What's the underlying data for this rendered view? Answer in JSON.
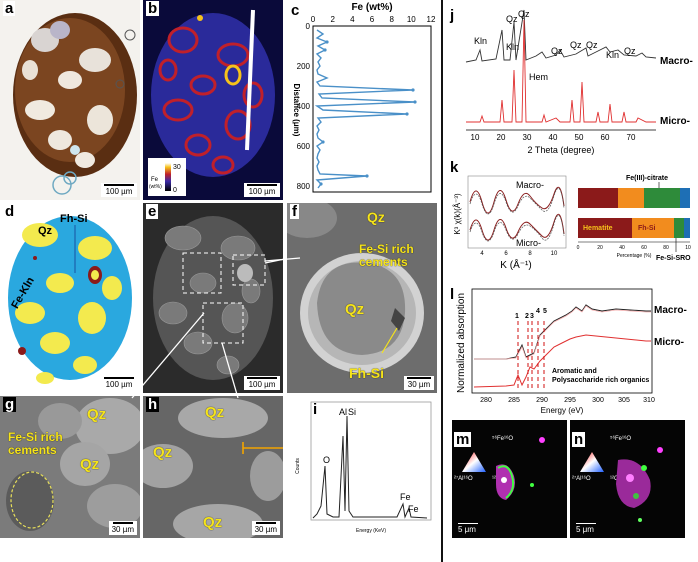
{
  "panels": {
    "a": {
      "label": "a",
      "scale": "100 µm"
    },
    "b": {
      "label": "b",
      "scale": "100 µm",
      "legend_title": "Fe",
      "legend_unit": "(wt%)",
      "legend_max": "30",
      "legend_min": "0"
    },
    "c": {
      "label": "c",
      "top_axis_label": "Fe (wt%)",
      "y_axis_label": "Distance (μm)",
      "x_ticks": [
        "0",
        "2",
        "4",
        "6",
        "8",
        "10",
        "12"
      ],
      "y_ticks": [
        "0",
        "200",
        "400",
        "600",
        "800"
      ]
    },
    "d": {
      "label": "d",
      "scale": "100 µm",
      "labels": {
        "qz": "Qz",
        "fhsi": "Fh-Si",
        "fekln": "Fe-Kln"
      }
    },
    "e": {
      "label": "e",
      "scale": "100 µm"
    },
    "f": {
      "label": "f",
      "scale": "30 µm",
      "labels": {
        "qz_top": "Qz",
        "cements": "Fe-Si rich\ncements",
        "qz_center": "Qz",
        "fhsi": "Fh-Si"
      }
    },
    "g": {
      "label": "g",
      "scale": "30 µm",
      "labels": {
        "qz1": "Qz",
        "qz2": "Qz",
        "cements": "Fe-Si rich\ncements"
      }
    },
    "h": {
      "label": "h",
      "scale": "30 µm",
      "labels": {
        "qz1": "Qz",
        "qz2": "Qz",
        "qz3": "Qz"
      }
    },
    "i": {
      "label": "i",
      "y_axis_label": "Counts",
      "x_axis_label": "Energy (KeV)",
      "peaks": {
        "o": "O",
        "al": "Al",
        "si": "Si",
        "fe1": "Fe",
        "fe2": "Fe"
      }
    },
    "j": {
      "label": "j",
      "x_axis_label": "2 Theta (degree)",
      "x_ticks": [
        "10",
        "20",
        "30",
        "40",
        "50",
        "60",
        "70"
      ],
      "series": [
        "Macro-",
        "Micro-"
      ],
      "peak_labels": [
        "Kln",
        "Qz",
        "Qz",
        "Kln",
        "Hem",
        "Qz",
        "Qz",
        "Qz",
        "Kln",
        "Qz"
      ]
    },
    "k": {
      "label": "k",
      "y_axis_label": "K³ χ(k)(Å⁻³)",
      "x_axis_label": "K (Å⁻¹)",
      "x_ticks": [
        "4",
        "6",
        "8",
        "10"
      ],
      "series": [
        "Macro-",
        "Micro-"
      ],
      "bar_x_label": "Percentage (%)",
      "bar_x_ticks": [
        "0",
        "20",
        "40",
        "60",
        "80",
        "10"
      ],
      "components": [
        "Fe(III)-citrate",
        "Hematite",
        "Fh-Si",
        "Fe-Si-SRO"
      ],
      "colors": {
        "hematite": "#8b1a1a",
        "fhsi": "#f28c1e",
        "citrate": "#2e8b3a",
        "sro": "#1e6fb5"
      }
    },
    "l": {
      "label": "l",
      "y_axis_label": "Normalized absorption",
      "x_axis_label": "Energy (eV)",
      "x_ticks": [
        "280",
        "285",
        "290",
        "295",
        "300",
        "305",
        "310"
      ],
      "series": [
        "Macro-",
        "Micro-"
      ],
      "peak_numbers": [
        "1",
        "2",
        "3",
        "4",
        "5"
      ],
      "annotation": "Aromatic and\nPolysaccharide rich organics"
    },
    "m": {
      "label": "m",
      "scale": "5 μm",
      "tri_top": "⁵⁶Fe¹⁶O",
      "tri_left": "²⁷Al¹⁶O",
      "tri_right": "¹²C"
    },
    "n": {
      "label": "n",
      "scale": "5 μm",
      "tri_top": "⁵⁶Fe¹⁶O",
      "tri_left": "²⁷Al¹⁶O",
      "tri_right": "¹²C"
    }
  }
}
